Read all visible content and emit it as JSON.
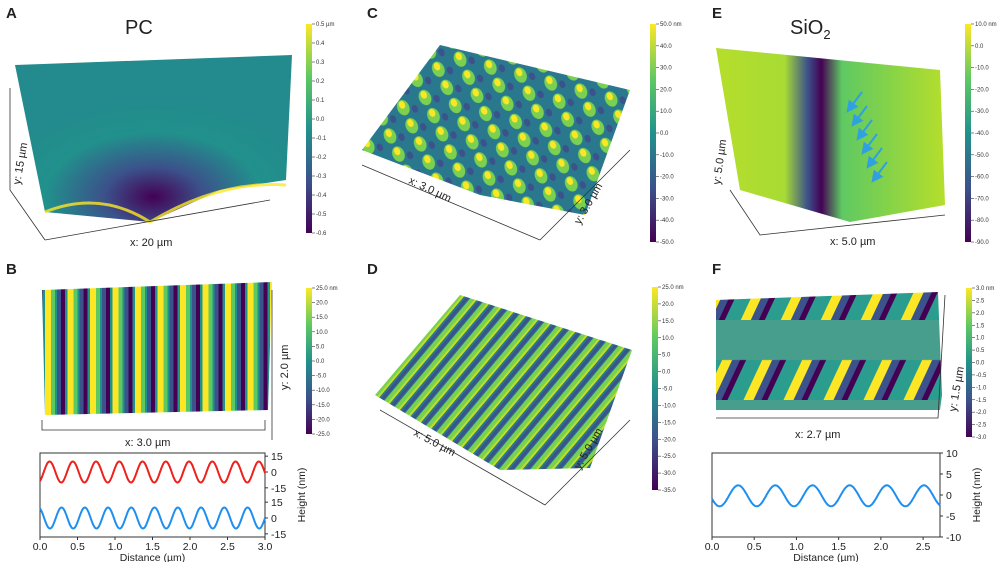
{
  "colors": {
    "viridis": [
      "#440154",
      "#3b528b",
      "#21918c",
      "#5ec962",
      "#fde725"
    ],
    "red_trace": "#f0201a",
    "blue_trace": "#1e8ff0",
    "arrows": "#2fa0e0"
  },
  "panels": {
    "A": {
      "label": "A",
      "title": "PC",
      "x_axis": "x: 20 µm",
      "y_axis": "y: 15 µm",
      "colorbar": [
        "0.5 µm",
        "0.4",
        "0.3",
        "0.2",
        "0.1",
        "0.0",
        "-0.1",
        "-0.2",
        "-0.3",
        "-0.4",
        "-0.5",
        "-0.6"
      ]
    },
    "B": {
      "label": "B",
      "x_axis": "x: 3.0 µm",
      "y_axis": "y: 2.0 µm",
      "colorbar": [
        "25.0 nm",
        "20.0",
        "15.0",
        "10.0",
        "5.0",
        "0.0",
        "-5.0",
        "-10.0",
        "-15.0",
        "-20.0",
        "-25.0"
      ]
    },
    "C": {
      "label": "C",
      "x_axis": "x: 3.0 µm",
      "y_axis": "y: 3.0 µm",
      "colorbar": [
        "50.0 nm",
        "40.0",
        "30.0",
        "20.0",
        "10.0",
        "0.0",
        "-10.0",
        "-20.0",
        "-30.0",
        "-40.0",
        "-50.0"
      ]
    },
    "D": {
      "label": "D",
      "x_axis": "x: 5.0 µm",
      "y_axis": "y: 5.0 µm",
      "colorbar": [
        "25.0 nm",
        "20.0",
        "15.0",
        "10.0",
        "5.0",
        "0.0",
        "-5.0",
        "-10.0",
        "-15.0",
        "-20.0",
        "-25.0",
        "-30.0",
        "-35.0"
      ]
    },
    "E": {
      "label": "E",
      "title_main": "SiO",
      "title_sub": "2",
      "x_axis": "x: 5.0 µm",
      "y_axis": "y: 5.0 µm",
      "colorbar": [
        "10.0 nm",
        "0.0",
        "-10.0",
        "-20.0",
        "-30.0",
        "-40.0",
        "-50.0",
        "-60.0",
        "-70.0",
        "-80.0",
        "-90.0"
      ]
    },
    "F": {
      "label": "F",
      "x_axis": "x: 2.7 µm",
      "y_axis": "y: 1.5 µm",
      "colorbar": [
        "3.0 nm",
        "2.5",
        "2.0",
        "1.5",
        "1.0",
        "0.5",
        "0.0",
        "-0.5",
        "-1.0",
        "-1.5",
        "-2.0",
        "-2.5",
        "-3.0"
      ]
    }
  },
  "chart_data": [
    {
      "type": "line",
      "panel": "B",
      "xlabel": "Distance (µm)",
      "ylabel": "Height (nm)",
      "xlim": [
        0,
        3.0
      ],
      "xticks": [
        "0.0",
        "0.5",
        "1.0",
        "1.5",
        "2.0",
        "2.5",
        "3.0"
      ],
      "yticks": [
        "15",
        "0",
        "-15"
      ],
      "series": [
        {
          "color": "#f0201a",
          "period_um": 0.31,
          "amplitude_nm": 10,
          "phase_um": 0.05,
          "ylim": [
            -18,
            18
          ]
        },
        {
          "color": "#1e8ff0",
          "period_um": 0.31,
          "amplitude_nm": 10,
          "phase_um": -0.1,
          "ylim": [
            -18,
            18
          ]
        }
      ]
    },
    {
      "type": "line",
      "panel": "F",
      "xlabel": "Distance (µm)",
      "ylabel": "Height (nm)",
      "xlim": [
        0,
        2.7
      ],
      "ylim": [
        -10,
        10
      ],
      "xticks": [
        "0.0",
        "0.5",
        "1.0",
        "1.5",
        "2.0",
        "2.5"
      ],
      "yticks": [
        "10",
        "5",
        "0",
        "-5",
        "-10"
      ],
      "series": [
        {
          "color": "#1e8ff0",
          "period_um": 0.44,
          "amplitude_nm": 2.5,
          "phase_um": 0.2,
          "offset_nm": -0.2
        }
      ]
    }
  ]
}
